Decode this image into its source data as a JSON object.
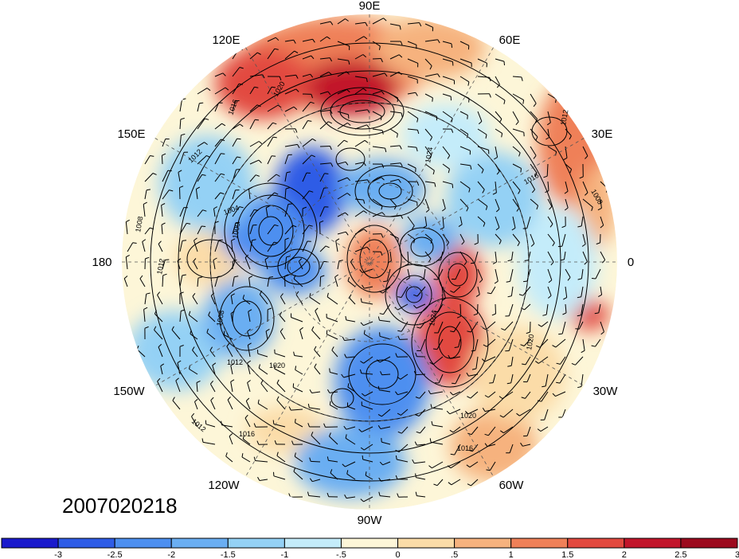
{
  "map": {
    "timestamp": "2007020218",
    "longitude_labels": [
      {
        "text": "90E",
        "lon": 90
      },
      {
        "text": "120E",
        "lon": 120
      },
      {
        "text": "60E",
        "lon": 60
      },
      {
        "text": "150E",
        "lon": 150
      },
      {
        "text": "30E",
        "lon": 30
      },
      {
        "text": "180",
        "lon": 180
      },
      {
        "text": "0",
        "lon": 0
      },
      {
        "text": "150W",
        "lon": -150
      },
      {
        "text": "30W",
        "lon": -30
      },
      {
        "text": "120W",
        "lon": -120
      },
      {
        "text": "60W",
        "lon": -60
      },
      {
        "text": "90W",
        "lon": -90
      }
    ],
    "contour_labels": [
      "1016",
      "1020",
      "1012",
      "1008",
      "1004",
      "1000",
      "1024"
    ],
    "colorbar": {
      "colors": [
        "#1a1acc",
        "#2e5ce6",
        "#4d8ff0",
        "#6aaef2",
        "#94d1f5",
        "#c4ecfa",
        "#fdf6d8",
        "#fbdca8",
        "#f6b27e",
        "#ef8058",
        "#e2493f",
        "#c2152b",
        "#9c0a1e"
      ],
      "tick_labels": [
        "-3",
        "-2.5",
        "-2",
        "-1.5",
        "-1",
        "-.5",
        "0",
        ".5",
        "1",
        "1.5",
        "2",
        "2.5",
        "3"
      ]
    }
  }
}
